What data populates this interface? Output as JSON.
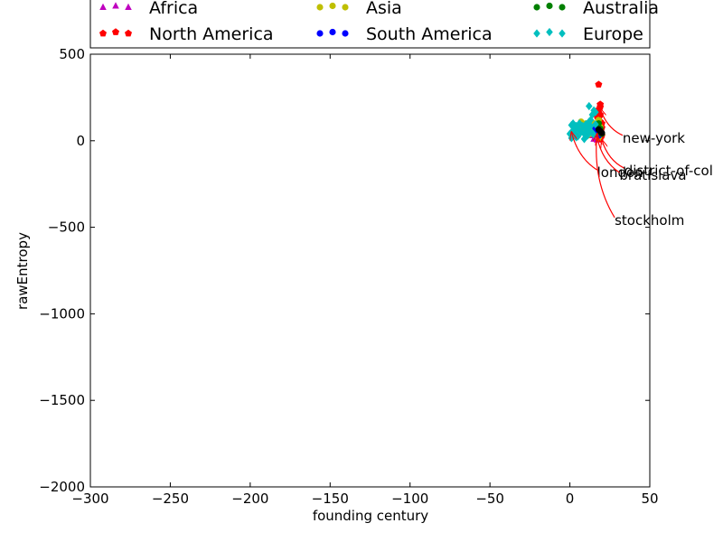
{
  "chart_data": {
    "type": "scatter",
    "title": "",
    "xlabel": "founding century",
    "ylabel": "rawEntropy",
    "xlim": [
      -300,
      50
    ],
    "ylim": [
      -2000,
      500
    ],
    "xticks": [
      -300,
      -250,
      -200,
      -150,
      -100,
      -50,
      0,
      50
    ],
    "yticks": [
      -2000,
      -1500,
      -1000,
      -500,
      0,
      500
    ],
    "xtick_labels": [
      "−300",
      "−250",
      "−200",
      "−150",
      "−100",
      "−50",
      "0",
      "50"
    ],
    "ytick_labels": [
      "−2000",
      "−1500",
      "−1000",
      "−500",
      "0",
      "500"
    ],
    "grid": false,
    "legend_position": "top",
    "series": [
      {
        "name": "Africa",
        "marker": "triangle",
        "color": "#bf00bf",
        "points": [
          [
            15,
            10
          ],
          [
            16,
            20
          ],
          [
            17,
            5
          ],
          [
            14,
            30
          ],
          [
            18,
            45
          ],
          [
            16,
            60
          ]
        ]
      },
      {
        "name": "North America",
        "marker": "pentagon",
        "color": "#ff0000",
        "points": [
          [
            18,
            325
          ],
          [
            19,
            210
          ],
          [
            19,
            195
          ],
          [
            18,
            180
          ],
          [
            17,
            160
          ],
          [
            19,
            150
          ],
          [
            18,
            130
          ],
          [
            19,
            110
          ],
          [
            18,
            90
          ],
          [
            20,
            75
          ],
          [
            17,
            60
          ],
          [
            18,
            50
          ],
          [
            19,
            40
          ],
          [
            20,
            30
          ],
          [
            18,
            20
          ],
          [
            19,
            10
          ],
          [
            17,
            140
          ],
          [
            20,
            100
          ],
          [
            16,
            85
          ]
        ]
      },
      {
        "name": "Asia",
        "marker": "circle",
        "color": "#bfbf00",
        "points": [
          [
            7,
            110
          ],
          [
            10,
            100
          ],
          [
            12,
            70
          ],
          [
            15,
            60
          ],
          [
            18,
            120
          ],
          [
            19,
            80
          ],
          [
            9,
            50
          ],
          [
            13,
            40
          ],
          [
            16,
            90
          ],
          [
            11,
            30
          ],
          [
            18,
            15
          ],
          [
            14,
            105
          ],
          [
            6,
            85
          ],
          [
            8,
            65
          ],
          [
            17,
            35
          ],
          [
            19,
            55
          ]
        ]
      },
      {
        "name": "South America",
        "marker": "circle",
        "color": "#0000ff",
        "points": [
          [
            16,
            70
          ],
          [
            17,
            55
          ],
          [
            16,
            40
          ],
          [
            18,
            30
          ]
        ]
      },
      {
        "name": "Australia",
        "marker": "circle",
        "color": "#008000",
        "points": [
          [
            19,
            50
          ],
          [
            19,
            70
          ],
          [
            20,
            40
          ],
          [
            18,
            100
          ]
        ]
      },
      {
        "name": "Europe",
        "marker": "diamond",
        "color": "#00bfbf",
        "points": [
          [
            12,
            200
          ],
          [
            15,
            175
          ],
          [
            16,
            165
          ],
          [
            14,
            150
          ],
          [
            13,
            120
          ],
          [
            10,
            95
          ],
          [
            1,
            90
          ],
          [
            3,
            80
          ],
          [
            5,
            70
          ],
          [
            2,
            60
          ],
          [
            7,
            50
          ],
          [
            9,
            40
          ],
          [
            11,
            30
          ],
          [
            4,
            20
          ],
          [
            1,
            15
          ],
          [
            6,
            100
          ],
          [
            8,
            85
          ],
          [
            10,
            65
          ],
          [
            12,
            55
          ],
          [
            14,
            45
          ],
          [
            15,
            35
          ],
          [
            3,
            45
          ],
          [
            2,
            30
          ],
          [
            5,
            25
          ],
          [
            12,
            110
          ],
          [
            16,
            95
          ],
          [
            11,
            75
          ],
          [
            13,
            85
          ],
          [
            9,
            10
          ],
          [
            0,
            40
          ],
          [
            2,
            100
          ],
          [
            4,
            85
          ]
        ]
      },
      {
        "name": "",
        "marker": "circle",
        "color": "#000000",
        "in_legend": false,
        "points": [
          [
            19,
            55
          ],
          [
            20,
            45
          ],
          [
            18,
            65
          ]
        ]
      }
    ],
    "annotations": [
      {
        "text": "new-york",
        "point": [
          19,
          185
        ],
        "text_pos": [
          33,
          0
        ]
      },
      {
        "text": "district-of-col",
        "point": [
          20,
          5
        ],
        "text_pos": [
          34,
          -190
        ]
      },
      {
        "text": "london",
        "point": [
          1,
          50
        ],
        "text_pos": [
          17,
          -200
        ]
      },
      {
        "text": "bratíslava",
        "point": [
          17,
          20
        ],
        "text_pos": [
          31,
          -215
        ]
      },
      {
        "text": "stockholm",
        "point": [
          17,
          40
        ],
        "text_pos": [
          28,
          -475
        ]
      }
    ]
  }
}
